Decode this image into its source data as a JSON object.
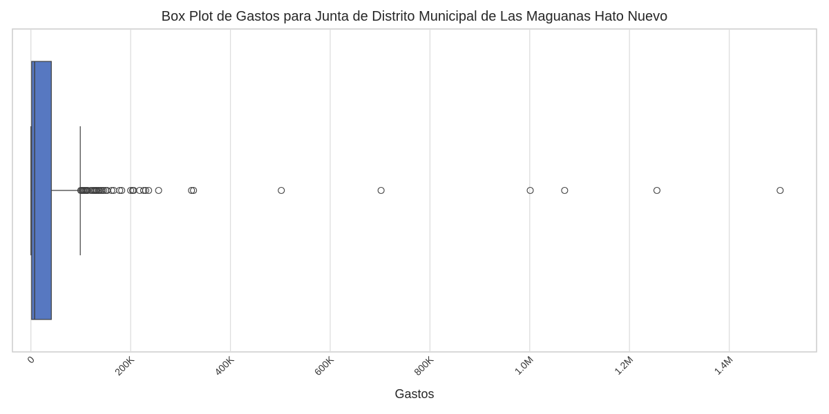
{
  "chart_data": {
    "type": "box",
    "title": "Box Plot de Gastos para Junta de Distrito Municipal de Las Maguanas Hato Nuevo",
    "xlabel": "Gastos",
    "ylabel": "",
    "orientation": "horizontal",
    "xlim": [
      -37000,
      1575000
    ],
    "xticks": [
      {
        "value": 0,
        "label": "0"
      },
      {
        "value": 200000,
        "label": "200K"
      },
      {
        "value": 400000,
        "label": "400K"
      },
      {
        "value": 600000,
        "label": "600K"
      },
      {
        "value": 800000,
        "label": "800K"
      },
      {
        "value": 1000000,
        "label": "1.0M"
      },
      {
        "value": 1200000,
        "label": "1.2M"
      },
      {
        "value": 1400000,
        "label": "1.4M"
      }
    ],
    "grid": true,
    "box": {
      "min": 0,
      "q1": 1500,
      "median": 7500,
      "q3": 41000,
      "max": 99000,
      "color": "#5778c1"
    },
    "outliers": [
      100000,
      102000,
      104000,
      106000,
      108000,
      110000,
      112000,
      114000,
      120000,
      123000,
      126000,
      128000,
      130000,
      132000,
      135000,
      137000,
      140000,
      143000,
      146000,
      150000,
      153000,
      162000,
      166000,
      178000,
      182000,
      200000,
      204000,
      206000,
      218000,
      226000,
      230000,
      236000,
      256000,
      322000,
      326000,
      502000,
      702000,
      1001000,
      1070000,
      1255000,
      1502000
    ]
  }
}
